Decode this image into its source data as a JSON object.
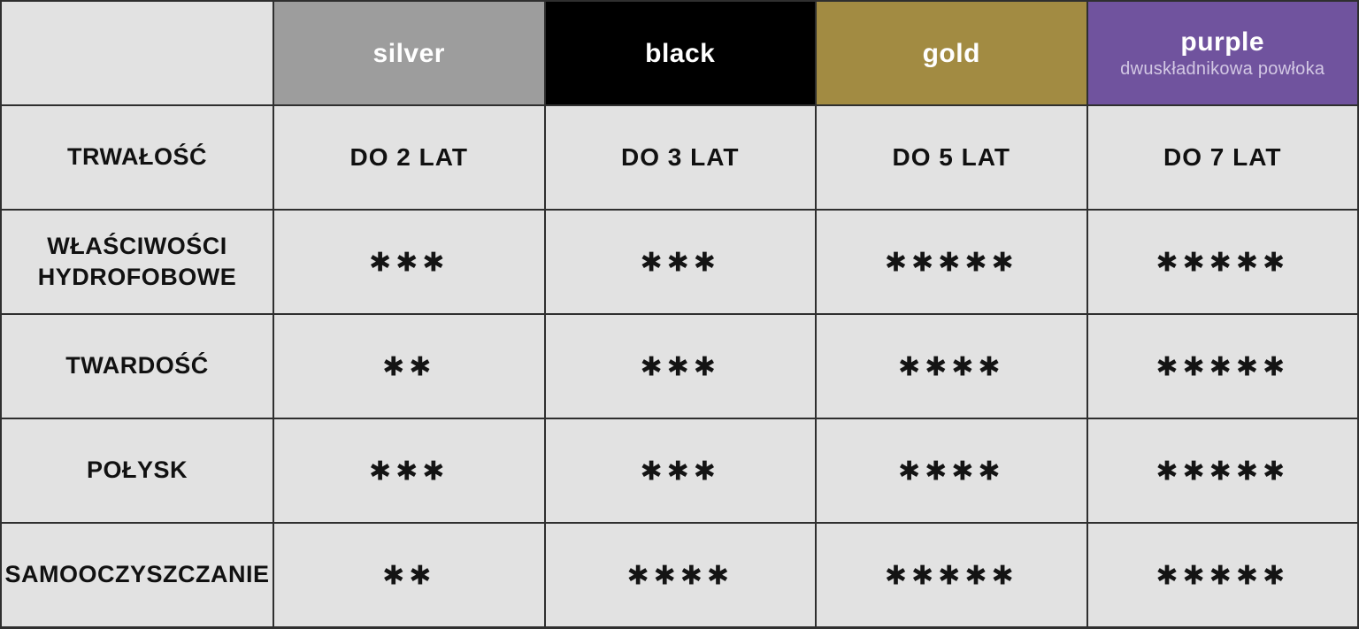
{
  "colors": {
    "cell_background": "#e2e2e2",
    "grid_line": "#2f2f2f",
    "text": "#111111",
    "header_text": "#ffffff",
    "purple_sublabel_text": "#d3c8e4"
  },
  "columns": [
    {
      "label": "silver",
      "bg": "#9d9d9d"
    },
    {
      "label": "black",
      "bg": "#000000"
    },
    {
      "label": "gold",
      "bg": "#a28b42"
    },
    {
      "label": "purple",
      "sublabel": "dwuskładnikowa powłoka",
      "bg": "#70539e"
    }
  ],
  "rows": [
    {
      "label": "TRWAŁOŚĆ",
      "values": [
        "DO 2 LAT",
        "DO 3 LAT",
        "DO 5 LAT",
        "DO 7 LAT"
      ]
    },
    {
      "label": "WŁAŚCIWOŚCI HYDROFOBOWE",
      "ratings": [
        3,
        3,
        5,
        5
      ],
      "stars": [
        "✱✱✱",
        "✱✱✱",
        "✱✱✱✱✱",
        "✱✱✱✱✱"
      ]
    },
    {
      "label": "TWARDOŚĆ",
      "ratings": [
        2,
        3,
        4,
        5
      ],
      "stars": [
        "✱✱",
        "✱✱✱",
        "✱✱✱✱",
        "✱✱✱✱✱"
      ]
    },
    {
      "label": "POŁYSK",
      "ratings": [
        3,
        3,
        4,
        5
      ],
      "stars": [
        "✱✱✱",
        "✱✱✱",
        "✱✱✱✱",
        "✱✱✱✱✱"
      ]
    },
    {
      "label": "SAMOOCZYSZCZANIE",
      "ratings": [
        2,
        4,
        5,
        5
      ],
      "stars": [
        "✱✱",
        "✱✱✱✱",
        "✱✱✱✱✱",
        "✱✱✱✱✱"
      ]
    }
  ],
  "chart_data": {
    "type": "table",
    "title": "",
    "columns": [
      "",
      "silver",
      "black",
      "gold",
      "purple (dwuskładnikowa powłoka)"
    ],
    "rows": [
      [
        "TRWAŁOŚĆ",
        "DO 2 LAT",
        "DO 3 LAT",
        "DO 5 LAT",
        "DO 7 LAT"
      ],
      [
        "WŁAŚCIWOŚCI HYDROFOBOWE",
        3,
        3,
        5,
        5
      ],
      [
        "TWARDOŚĆ",
        2,
        3,
        4,
        5
      ],
      [
        "POŁYSK",
        3,
        3,
        4,
        5
      ],
      [
        "SAMOOCZYSZCZANIE",
        2,
        4,
        5,
        5
      ]
    ],
    "star_scale_max": 5,
    "legend_position": "none",
    "grid": true
  }
}
